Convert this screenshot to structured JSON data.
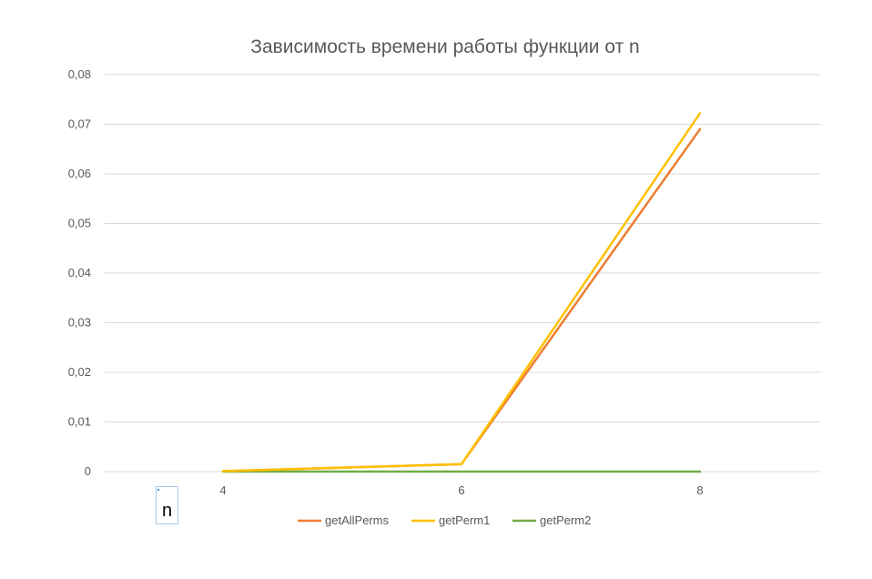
{
  "chart_data": {
    "type": "line",
    "title": "Зависимость времени работы функции от n",
    "x": [
      4,
      6,
      8
    ],
    "x_tick_labels": [
      "4",
      "6",
      "8"
    ],
    "y_tick_labels": [
      "0",
      "0,01",
      "0,02",
      "0,03",
      "0,04",
      "0,05",
      "0,06",
      "0,07",
      "0,08"
    ],
    "ylim": [
      0,
      0.08
    ],
    "y_ticks": [
      0,
      0.01,
      0.02,
      0.03,
      0.04,
      0.05,
      0.06,
      0.07,
      0.08
    ],
    "grid": true,
    "legend_position": "bottom",
    "series": [
      {
        "name": "getAllPerms",
        "color": "#ed7d31",
        "values": [
          0.0001,
          0.0015,
          0.069
        ]
      },
      {
        "name": "getPerm1",
        "color": "#ffc000",
        "values": [
          0.0001,
          0.0015,
          0.0722
        ]
      },
      {
        "name": "getPerm2",
        "color": "#70ad47",
        "values": [
          0.0,
          0.0,
          0.0
        ]
      }
    ]
  },
  "axis_title_box": {
    "label": "n"
  }
}
